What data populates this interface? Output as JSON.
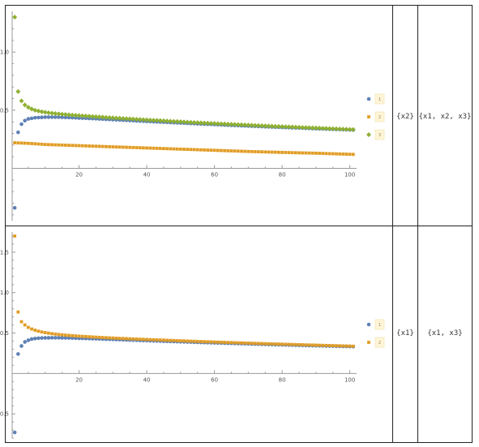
{
  "rows": [
    {
      "col2": "{x2}",
      "col3": "{x1, x2, x3}",
      "chart": {
        "type": "scatter",
        "xlim": [
          0,
          102
        ],
        "ylim": [
          -0.45,
          1.35
        ],
        "xticks": [
          20,
          40,
          60,
          80,
          100
        ],
        "yticks": [
          0.5,
          1.0
        ],
        "ytick_labels": [
          "0.5",
          "1.0"
        ],
        "legend": [
          "1",
          "2",
          "3"
        ],
        "series": [
          {
            "color": "#5e81b5",
            "marker": "circle",
            "x": [
              1,
              2,
              3,
              4,
              5,
              6,
              7,
              8,
              9,
              10,
              12,
              14,
              16,
              18,
              20,
              24,
              28,
              32,
              36,
              40,
              45,
              50,
              55,
              60,
              65,
              70,
              75,
              80,
              85,
              90,
              95,
              101
            ],
            "y": [
              -0.34,
              0.31,
              0.38,
              0.41,
              0.425,
              0.43,
              0.435,
              0.437,
              0.438,
              0.44,
              0.44,
              0.44,
              0.438,
              0.436,
              0.433,
              0.428,
              0.422,
              0.416,
              0.41,
              0.404,
              0.397,
              0.39,
              0.383,
              0.377,
              0.37,
              0.364,
              0.358,
              0.352,
              0.347,
              0.341,
              0.336,
              0.33
            ]
          },
          {
            "color": "#e19c24",
            "marker": "square",
            "x": [
              1,
              5,
              10,
              20,
              30,
              40,
              50,
              60,
              70,
              80,
              90,
              101
            ],
            "y": [
              0.22,
              0.215,
              0.205,
              0.195,
              0.185,
              0.175,
              0.165,
              0.155,
              0.145,
              0.137,
              0.13,
              0.12
            ]
          },
          {
            "color": "#8fb032",
            "marker": "diamond",
            "x": [
              1,
              2,
              3,
              4,
              5,
              6,
              7,
              8,
              9,
              10,
              12,
              14,
              16,
              18,
              20,
              24,
              28,
              32,
              36,
              40,
              45,
              50,
              55,
              60,
              65,
              70,
              75,
              80,
              85,
              90,
              95,
              101
            ],
            "y": [
              1.3,
              0.66,
              0.58,
              0.545,
              0.525,
              0.51,
              0.5,
              0.493,
              0.487,
              0.482,
              0.474,
              0.468,
              0.463,
              0.458,
              0.454,
              0.446,
              0.438,
              0.431,
              0.424,
              0.417,
              0.409,
              0.401,
              0.393,
              0.386,
              0.379,
              0.372,
              0.365,
              0.359,
              0.353,
              0.347,
              0.341,
              0.334
            ]
          }
        ]
      }
    },
    {
      "col2": "{x1}",
      "col3": "{x1, x3}",
      "chart": {
        "type": "scatter",
        "xlim": [
          0,
          102
        ],
        "ylim": [
          -0.8,
          1.75
        ],
        "xticks": [
          20,
          40,
          60,
          80,
          100
        ],
        "yticks": [
          -0.5,
          0.5,
          1.0,
          1.5
        ],
        "ytick_labels": [
          "-0.5",
          "0.5",
          "1.0",
          "1.5"
        ],
        "legend": [
          "1",
          "2"
        ],
        "series": [
          {
            "color": "#5e81b5",
            "marker": "circle",
            "x": [
              1,
              2,
              3,
              4,
              5,
              6,
              7,
              8,
              9,
              10,
              12,
              14,
              16,
              18,
              20,
              24,
              28,
              32,
              36,
              40,
              45,
              50,
              55,
              60,
              65,
              70,
              75,
              80,
              85,
              90,
              95,
              101
            ],
            "y": [
              -0.73,
              0.24,
              0.34,
              0.39,
              0.41,
              0.425,
              0.432,
              0.436,
              0.438,
              0.44,
              0.441,
              0.441,
              0.44,
              0.438,
              0.435,
              0.43,
              0.424,
              0.418,
              0.412,
              0.406,
              0.399,
              0.392,
              0.385,
              0.379,
              0.372,
              0.366,
              0.36,
              0.354,
              0.348,
              0.343,
              0.338,
              0.332
            ]
          },
          {
            "color": "#e19c24",
            "marker": "square",
            "x": [
              1,
              2,
              3,
              4,
              5,
              6,
              7,
              8,
              9,
              10,
              12,
              14,
              16,
              18,
              20,
              24,
              28,
              32,
              36,
              40,
              45,
              50,
              55,
              60,
              65,
              70,
              75,
              80,
              85,
              90,
              95,
              101
            ],
            "y": [
              1.7,
              0.76,
              0.64,
              0.6,
              0.57,
              0.55,
              0.535,
              0.523,
              0.513,
              0.505,
              0.492,
              0.482,
              0.474,
              0.467,
              0.461,
              0.451,
              0.442,
              0.434,
              0.427,
              0.42,
              0.412,
              0.404,
              0.396,
              0.389,
              0.382,
              0.375,
              0.368,
              0.362,
              0.356,
              0.35,
              0.344,
              0.337
            ]
          }
        ]
      }
    }
  ]
}
